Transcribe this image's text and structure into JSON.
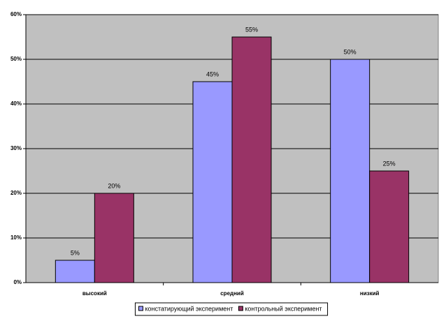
{
  "chart_data": {
    "type": "bar",
    "categories": [
      "высокий",
      "средний",
      "низкий"
    ],
    "series": [
      {
        "name": "констатирующий эксперимент",
        "color": "#9999ff",
        "values": [
          5,
          45,
          50
        ],
        "value_labels": [
          "5%",
          "45%",
          "50%"
        ]
      },
      {
        "name": "контрольный эксперимент",
        "color": "#993366",
        "values": [
          20,
          55,
          25
        ],
        "value_labels": [
          "20%",
          "55%",
          "25%"
        ]
      }
    ],
    "ylim": [
      0,
      60
    ],
    "yticks": [
      {
        "value": 0,
        "label": "0%"
      },
      {
        "value": 10,
        "label": "10%"
      },
      {
        "value": 20,
        "label": "20%"
      },
      {
        "value": 30,
        "label": "30%"
      },
      {
        "value": 40,
        "label": "40%"
      },
      {
        "value": 50,
        "label": "50%"
      },
      {
        "value": 60,
        "label": "60%"
      }
    ],
    "grid": true,
    "legend": "bottom"
  }
}
